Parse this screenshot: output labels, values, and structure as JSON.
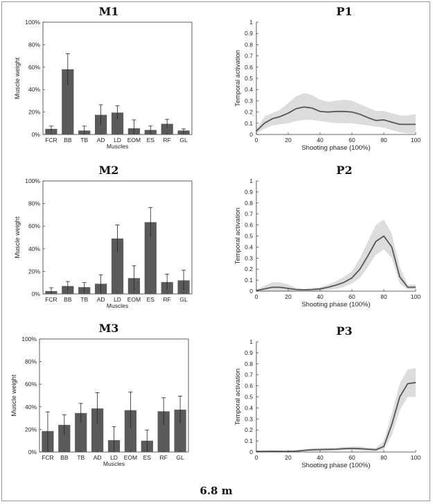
{
  "caption": "6.8 m",
  "colors": {
    "bar": "#5a5a5a",
    "line": "#555555",
    "band": "#dcdcdc",
    "axis": "#333333"
  },
  "chart_data": [
    {
      "id": "M1",
      "type": "bar",
      "title": "M1",
      "categories": [
        "FCR",
        "BB",
        "TB",
        "AD",
        "LD",
        "EOM",
        "ES",
        "RF",
        "GL"
      ],
      "values": [
        5,
        58,
        3.5,
        17.5,
        19.5,
        5.5,
        4,
        9.5,
        3.5
      ],
      "errors": [
        2.5,
        14,
        4,
        9,
        6,
        7.5,
        3.5,
        4,
        1.5
      ],
      "xlabel": "Muscles",
      "ylabel": "Muscle weight",
      "ylim": [
        0,
        100
      ],
      "yticks": [
        "0%",
        "20%",
        "40%",
        "60%",
        "80%",
        "100%"
      ]
    },
    {
      "id": "P1",
      "type": "line",
      "title": "P1",
      "x": [
        0,
        5,
        10,
        15,
        20,
        25,
        30,
        35,
        40,
        45,
        50,
        55,
        60,
        65,
        70,
        75,
        80,
        85,
        90,
        95,
        100
      ],
      "y": [
        0.03,
        0.1,
        0.14,
        0.16,
        0.19,
        0.23,
        0.245,
        0.235,
        0.205,
        0.2,
        0.205,
        0.205,
        0.2,
        0.18,
        0.15,
        0.125,
        0.13,
        0.11,
        0.09,
        0.09,
        0.09
      ],
      "lower": [
        0.01,
        0.05,
        0.08,
        0.09,
        0.1,
        0.12,
        0.13,
        0.13,
        0.12,
        0.11,
        0.1,
        0.1,
        0.1,
        0.09,
        0.08,
        0.07,
        0.06,
        0.04,
        0.02,
        0.01,
        0.01
      ],
      "upper": [
        0.05,
        0.16,
        0.19,
        0.22,
        0.28,
        0.34,
        0.37,
        0.35,
        0.31,
        0.29,
        0.3,
        0.31,
        0.3,
        0.27,
        0.24,
        0.21,
        0.21,
        0.19,
        0.17,
        0.17,
        0.18
      ],
      "xlabel": "Shooting phase (100%)",
      "ylabel": "Temporal activation",
      "xlim": [
        0,
        100
      ],
      "ylim": [
        0,
        1
      ],
      "xticks": [
        "0",
        "20",
        "40",
        "60",
        "80",
        "100"
      ],
      "yticks": [
        "0",
        "0.1",
        "0.2",
        "0.3",
        "0.4",
        "0.5",
        "0.6",
        "0.7",
        "0.8",
        "0.9",
        "1"
      ]
    },
    {
      "id": "M2",
      "type": "bar",
      "title": "M2",
      "categories": [
        "FCR",
        "BB",
        "TB",
        "AD",
        "LD",
        "EOM",
        "ES",
        "RF",
        "GL"
      ],
      "values": [
        2.5,
        7,
        6,
        9,
        49,
        14,
        63.5,
        10.5,
        12
      ],
      "errors": [
        3,
        4,
        4,
        8,
        12,
        11,
        13,
        7,
        9
      ],
      "xlabel": "Muscles",
      "ylabel": "Muscle weight",
      "ylim": [
        0,
        100
      ],
      "yticks": [
        "0%",
        "20%",
        "40%",
        "60%",
        "80%",
        "100%"
      ]
    },
    {
      "id": "P2",
      "type": "line",
      "title": "P2",
      "x": [
        0,
        5,
        10,
        15,
        20,
        25,
        30,
        35,
        40,
        45,
        50,
        55,
        60,
        65,
        70,
        75,
        80,
        85,
        90,
        95,
        100
      ],
      "y": [
        0.005,
        0.02,
        0.035,
        0.035,
        0.025,
        0.015,
        0.012,
        0.015,
        0.02,
        0.035,
        0.055,
        0.08,
        0.12,
        0.2,
        0.32,
        0.45,
        0.5,
        0.4,
        0.13,
        0.035,
        0.035
      ],
      "lower": [
        0,
        0,
        0,
        0,
        0,
        0,
        0,
        0,
        0.005,
        0.01,
        0.02,
        0.04,
        0.07,
        0.12,
        0.22,
        0.33,
        0.38,
        0.3,
        0.07,
        0.015,
        0.015
      ],
      "upper": [
        0.01,
        0.05,
        0.08,
        0.08,
        0.06,
        0.03,
        0.02,
        0.03,
        0.035,
        0.06,
        0.09,
        0.13,
        0.18,
        0.3,
        0.45,
        0.6,
        0.65,
        0.52,
        0.22,
        0.06,
        0.06
      ],
      "xlabel": "Shooting phase (100%)",
      "ylabel": "Temporal activation",
      "xlim": [
        0,
        100
      ],
      "ylim": [
        0,
        1
      ],
      "xticks": [
        "0",
        "20",
        "40",
        "60",
        "80",
        "100"
      ],
      "yticks": [
        "0",
        "0.1",
        "0.2",
        "0.3",
        "0.4",
        "0.5",
        "0.6",
        "0.7",
        "0.8",
        "0.9",
        "1"
      ]
    },
    {
      "id": "M3",
      "type": "bar",
      "title": "M3",
      "categories": [
        "FCR",
        "BB",
        "TB",
        "AD",
        "LD",
        "EOM",
        "ES",
        "RF",
        "GL"
      ],
      "values": [
        18.5,
        24,
        34.5,
        38.5,
        10.5,
        37,
        10,
        36,
        37.5
      ],
      "errors": [
        17,
        9,
        8.5,
        14,
        12,
        16,
        9.5,
        12,
        12
      ],
      "xlabel": "Muscles",
      "ylabel": "Muscle weight",
      "ylim": [
        0,
        100
      ],
      "yticks": [
        "0%",
        "20%",
        "40%",
        "60%",
        "80%",
        "100%"
      ]
    },
    {
      "id": "P3",
      "type": "line",
      "title": "P3",
      "x": [
        0,
        5,
        10,
        15,
        20,
        25,
        30,
        35,
        40,
        45,
        50,
        55,
        60,
        65,
        70,
        75,
        80,
        85,
        90,
        95,
        100
      ],
      "y": [
        0.005,
        0.006,
        0.007,
        0.006,
        0.005,
        0.008,
        0.015,
        0.02,
        0.022,
        0.023,
        0.025,
        0.03,
        0.032,
        0.03,
        0.025,
        0.02,
        0.05,
        0.25,
        0.5,
        0.62,
        0.63
      ],
      "lower": [
        0,
        0,
        0,
        0,
        0,
        0,
        0.005,
        0.008,
        0.01,
        0.01,
        0.012,
        0.015,
        0.015,
        0.012,
        0.01,
        0.008,
        0.02,
        0.15,
        0.38,
        0.5,
        0.5
      ],
      "upper": [
        0.01,
        0.012,
        0.014,
        0.012,
        0.01,
        0.015,
        0.025,
        0.032,
        0.035,
        0.038,
        0.04,
        0.045,
        0.05,
        0.05,
        0.04,
        0.035,
        0.1,
        0.35,
        0.62,
        0.75,
        0.76
      ],
      "xlabel": "Shooting phase (100%)",
      "ylabel": "Temporal activation",
      "xlim": [
        0,
        100
      ],
      "ylim": [
        0,
        1
      ],
      "xticks": [
        "0",
        "20",
        "40",
        "60",
        "80",
        "100"
      ],
      "yticks": [
        "0",
        "0.1",
        "0.2",
        "0.3",
        "0.4",
        "0.5",
        "0.6",
        "0.7",
        "0.8",
        "0.9",
        "1"
      ]
    }
  ]
}
